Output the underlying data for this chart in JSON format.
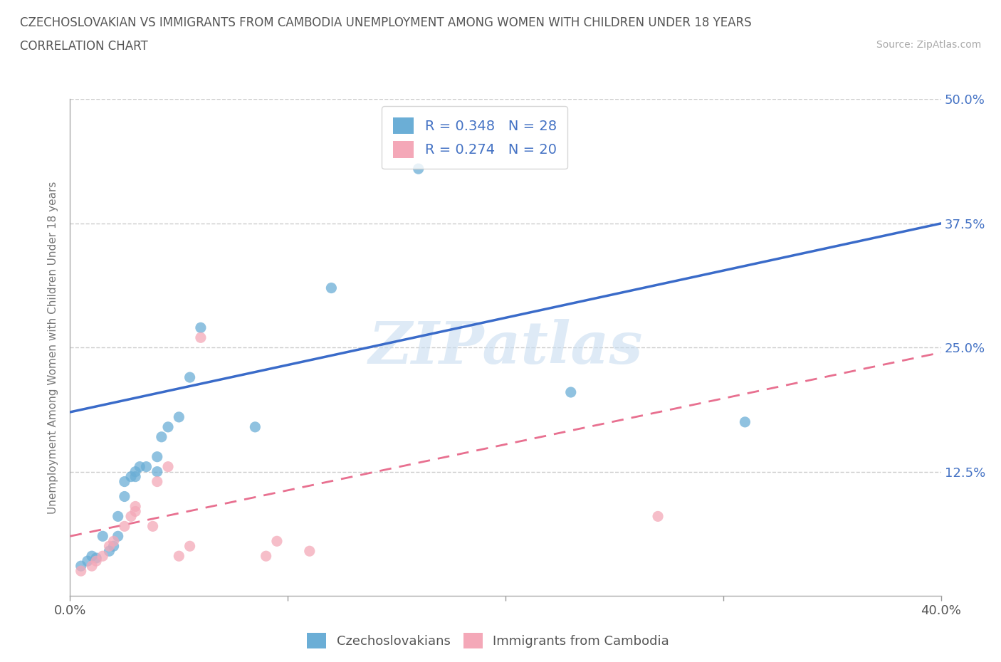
{
  "title_line1": "CZECHOSLOVAKIAN VS IMMIGRANTS FROM CAMBODIA UNEMPLOYMENT AMONG WOMEN WITH CHILDREN UNDER 18 YEARS",
  "title_line2": "CORRELATION CHART",
  "source_text": "Source: ZipAtlas.com",
  "ylabel": "Unemployment Among Women with Children Under 18 years",
  "xlim": [
    0.0,
    0.4
  ],
  "ylim": [
    0.0,
    0.5
  ],
  "xticks": [
    0.0,
    0.1,
    0.2,
    0.3,
    0.4
  ],
  "ytick_labels_right": [
    "12.5%",
    "25.0%",
    "37.5%",
    "50.0%"
  ],
  "yticks_right": [
    0.125,
    0.25,
    0.375,
    0.5
  ],
  "grid_color": "#cccccc",
  "blue_color": "#6baed6",
  "pink_color": "#f4a8b8",
  "blue_line_color": "#3a6bc9",
  "pink_line_color": "#e87090",
  "blue_label": "Czechoslovakians",
  "pink_label": "Immigrants from Cambodia",
  "R_blue": 0.348,
  "N_blue": 28,
  "R_pink": 0.274,
  "N_pink": 20,
  "blue_x": [
    0.005,
    0.008,
    0.01,
    0.012,
    0.015,
    0.018,
    0.02,
    0.022,
    0.022,
    0.025,
    0.025,
    0.028,
    0.03,
    0.03,
    0.032,
    0.035,
    0.04,
    0.04,
    0.042,
    0.045,
    0.05,
    0.055,
    0.06,
    0.085,
    0.12,
    0.16,
    0.23,
    0.31
  ],
  "blue_y": [
    0.03,
    0.035,
    0.04,
    0.038,
    0.06,
    0.045,
    0.05,
    0.06,
    0.08,
    0.1,
    0.115,
    0.12,
    0.12,
    0.125,
    0.13,
    0.13,
    0.125,
    0.14,
    0.16,
    0.17,
    0.18,
    0.22,
    0.27,
    0.17,
    0.31,
    0.43,
    0.205,
    0.175
  ],
  "pink_x": [
    0.005,
    0.01,
    0.012,
    0.015,
    0.018,
    0.02,
    0.025,
    0.028,
    0.03,
    0.03,
    0.038,
    0.04,
    0.045,
    0.05,
    0.055,
    0.06,
    0.09,
    0.095,
    0.11,
    0.27
  ],
  "pink_y": [
    0.025,
    0.03,
    0.035,
    0.04,
    0.05,
    0.055,
    0.07,
    0.08,
    0.085,
    0.09,
    0.07,
    0.115,
    0.13,
    0.04,
    0.05,
    0.26,
    0.04,
    0.055,
    0.045,
    0.08
  ],
  "blue_line_x0": 0.0,
  "blue_line_y0": 0.185,
  "blue_line_x1": 0.4,
  "blue_line_y1": 0.375,
  "pink_line_x0": 0.0,
  "pink_line_y0": 0.06,
  "pink_line_x1": 0.4,
  "pink_line_y1": 0.245,
  "background_color": "#ffffff",
  "watermark_text": "ZIPatlas",
  "watermark_color": "#c8ddf0"
}
